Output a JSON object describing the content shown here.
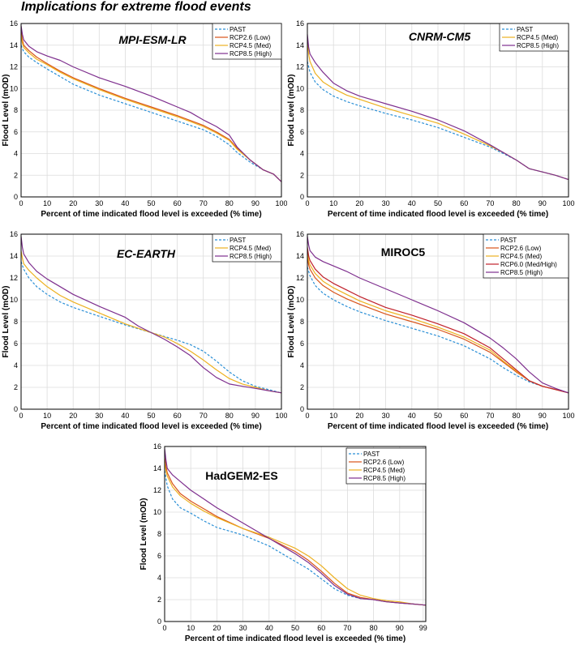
{
  "page_title": "Implications for extreme flood events",
  "colors": {
    "PAST": "#2a8fd6",
    "RCP2.6 (Low)": "#d95319",
    "RCP4.5 (Med)": "#edb120",
    "RCP6.0 (Med/High)": "#c0202a",
    "RCP8.5 (High)": "#7e2f8e"
  },
  "chart_data": [
    {
      "type": "line",
      "title": "MPI-ESM-LR",
      "title_italic": true,
      "xlabel": "Percent of time indicated flood level is exceeded (% time)",
      "ylabel": "Flood Level (mOD)",
      "xlim": [
        0,
        100
      ],
      "ylim": [
        0,
        16
      ],
      "xticks": [
        0,
        10,
        20,
        30,
        40,
        50,
        60,
        70,
        80,
        90,
        100
      ],
      "yticks": [
        0,
        2,
        4,
        6,
        8,
        10,
        12,
        14,
        16
      ],
      "grid": true,
      "legend_position": "top-right",
      "series": [
        {
          "name": "PAST",
          "dashed": true,
          "x": [
            0,
            1,
            3,
            6,
            10,
            15,
            20,
            30,
            40,
            50,
            60,
            70,
            75,
            80,
            83,
            88,
            93,
            97,
            100
          ],
          "y": [
            14.0,
            13.4,
            12.9,
            12.4,
            11.8,
            11.1,
            10.4,
            9.4,
            8.6,
            7.8,
            7.0,
            6.2,
            5.6,
            4.8,
            4.1,
            3.2,
            2.5,
            2.1,
            1.4
          ]
        },
        {
          "name": "RCP2.6 (Low)",
          "x": [
            0,
            0.5,
            1,
            3,
            6,
            10,
            15,
            20,
            30,
            40,
            50,
            60,
            70,
            75,
            80,
            83,
            88,
            93,
            97,
            100
          ],
          "y": [
            15.4,
            14.5,
            14.0,
            13.5,
            12.9,
            12.3,
            11.6,
            11.0,
            10.0,
            9.1,
            8.3,
            7.5,
            6.6,
            6.0,
            5.3,
            4.5,
            3.4,
            2.5,
            2.1,
            1.4
          ]
        },
        {
          "name": "RCP4.5 (Med)",
          "x": [
            0,
            0.5,
            1,
            3,
            6,
            10,
            15,
            20,
            30,
            40,
            50,
            60,
            70,
            75,
            80,
            83,
            88,
            93,
            97,
            100
          ],
          "y": [
            15.0,
            14.2,
            13.8,
            13.3,
            12.7,
            12.2,
            11.5,
            10.9,
            9.9,
            9.0,
            8.2,
            7.4,
            6.5,
            5.9,
            5.2,
            4.4,
            3.4,
            2.5,
            2.1,
            1.4
          ]
        },
        {
          "name": "RCP8.5 (High)",
          "x": [
            0,
            0.5,
            1,
            3,
            6,
            10,
            15,
            20,
            30,
            40,
            50,
            60,
            65,
            70,
            75,
            80,
            83,
            88,
            93,
            97,
            100
          ],
          "y": [
            15.8,
            15.0,
            14.5,
            13.9,
            13.4,
            13.0,
            12.6,
            12.0,
            11.0,
            10.2,
            9.3,
            8.3,
            7.8,
            7.1,
            6.5,
            5.7,
            4.6,
            3.4,
            2.5,
            2.1,
            1.4
          ]
        }
      ]
    },
    {
      "type": "line",
      "title": "CNRM-CM5",
      "title_italic": true,
      "xlabel": "Percent of time indicated flood level is exceeded (% time)",
      "ylabel": "Flood Level (mOD)",
      "xlim": [
        0,
        100
      ],
      "ylim": [
        0,
        16
      ],
      "xticks": [
        0,
        10,
        20,
        30,
        40,
        50,
        60,
        70,
        80,
        90,
        100
      ],
      "yticks": [
        0,
        2,
        4,
        6,
        8,
        10,
        12,
        14,
        16
      ],
      "grid": true,
      "legend_position": "top-right",
      "series": [
        {
          "name": "PAST",
          "dashed": true,
          "x": [
            0,
            1,
            3,
            6,
            10,
            15,
            20,
            30,
            40,
            50,
            60,
            70,
            75,
            80,
            85,
            90,
            95,
            100
          ],
          "y": [
            12.5,
            11.5,
            10.6,
            9.9,
            9.3,
            8.8,
            8.4,
            7.7,
            7.1,
            6.4,
            5.5,
            4.6,
            4.0,
            3.4,
            2.6,
            2.3,
            2.0,
            1.6
          ]
        },
        {
          "name": "RCP4.5 (Med)",
          "x": [
            0,
            0.5,
            1,
            3,
            6,
            10,
            15,
            20,
            30,
            40,
            50,
            60,
            70,
            75,
            80,
            85,
            90,
            95,
            100
          ],
          "y": [
            14.5,
            13.2,
            12.5,
            11.4,
            10.6,
            10.0,
            9.4,
            9.0,
            8.2,
            7.5,
            6.8,
            5.8,
            4.7,
            4.1,
            3.4,
            2.6,
            2.3,
            2.0,
            1.6
          ]
        },
        {
          "name": "RCP8.5 (High)",
          "x": [
            0,
            0.5,
            1,
            3,
            6,
            10,
            15,
            20,
            30,
            40,
            50,
            60,
            70,
            75,
            80,
            85,
            90,
            95,
            100
          ],
          "y": [
            15.0,
            13.8,
            13.2,
            12.4,
            11.5,
            10.5,
            9.8,
            9.3,
            8.6,
            7.9,
            7.1,
            6.1,
            4.8,
            4.1,
            3.4,
            2.6,
            2.3,
            2.0,
            1.6
          ]
        }
      ]
    },
    {
      "type": "line",
      "title": "EC-EARTH",
      "title_italic": true,
      "xlabel": "Percent of time indicated flood level is exceeded (% time)",
      "ylabel": "Flood Level (mOD)",
      "xlim": [
        0,
        100
      ],
      "ylim": [
        0,
        16
      ],
      "xticks": [
        0,
        10,
        20,
        30,
        40,
        50,
        60,
        70,
        80,
        90,
        100
      ],
      "yticks": [
        0,
        2,
        4,
        6,
        8,
        10,
        12,
        14,
        16
      ],
      "grid": true,
      "legend_position": "top-right",
      "series": [
        {
          "name": "PAST",
          "dashed": true,
          "x": [
            0,
            1,
            3,
            6,
            10,
            15,
            20,
            30,
            40,
            50,
            60,
            65,
            70,
            75,
            80,
            85,
            90,
            95,
            100
          ],
          "y": [
            13.5,
            12.8,
            12.0,
            11.2,
            10.5,
            9.8,
            9.3,
            8.5,
            7.7,
            7.0,
            6.3,
            5.9,
            5.3,
            4.4,
            3.4,
            2.6,
            2.1,
            1.8,
            1.5
          ]
        },
        {
          "name": "RCP4.5 (Med)",
          "x": [
            0,
            0.5,
            1,
            3,
            6,
            10,
            15,
            20,
            30,
            40,
            50,
            55,
            60,
            65,
            70,
            75,
            80,
            85,
            90,
            95,
            100
          ],
          "y": [
            14.5,
            13.8,
            13.3,
            12.7,
            12.0,
            11.2,
            10.4,
            9.8,
            8.8,
            7.8,
            7.0,
            6.6,
            6.0,
            5.3,
            4.5,
            3.6,
            2.8,
            2.3,
            2.0,
            1.7,
            1.5
          ]
        },
        {
          "name": "RCP8.5 (High)",
          "x": [
            0,
            0.5,
            1,
            3,
            6,
            10,
            15,
            20,
            30,
            40,
            45,
            50,
            55,
            60,
            65,
            70,
            75,
            80,
            85,
            90,
            95,
            100
          ],
          "y": [
            15.8,
            14.8,
            14.2,
            13.4,
            12.6,
            11.9,
            11.2,
            10.5,
            9.4,
            8.4,
            7.6,
            7.0,
            6.4,
            5.7,
            4.9,
            3.8,
            2.9,
            2.3,
            2.1,
            1.9,
            1.7,
            1.5
          ]
        }
      ]
    },
    {
      "type": "line",
      "title": "MIROC5",
      "title_italic": false,
      "xlabel": "Percent of time indicated flood level is exceeded (% time)",
      "ylabel": "Flood Level (mOD)",
      "xlim": [
        0,
        100
      ],
      "ylim": [
        0,
        16
      ],
      "xticks": [
        0,
        10,
        20,
        30,
        40,
        50,
        60,
        70,
        80,
        90,
        100
      ],
      "yticks": [
        0,
        2,
        4,
        6,
        8,
        10,
        12,
        14,
        16
      ],
      "grid": true,
      "legend_position": "top-right",
      "series": [
        {
          "name": "PAST",
          "dashed": true,
          "x": [
            0,
            1,
            3,
            6,
            10,
            15,
            20,
            30,
            40,
            50,
            60,
            70,
            75,
            80,
            85,
            90,
            95,
            100
          ],
          "y": [
            13.0,
            12.2,
            11.3,
            10.6,
            10.0,
            9.4,
            8.9,
            8.1,
            7.4,
            6.7,
            5.8,
            4.6,
            3.8,
            3.1,
            2.5,
            2.1,
            1.8,
            1.5
          ]
        },
        {
          "name": "RCP2.6 (Low)",
          "x": [
            0,
            0.5,
            1,
            3,
            6,
            10,
            15,
            20,
            30,
            40,
            50,
            60,
            70,
            75,
            80,
            85,
            90,
            95,
            100
          ],
          "y": [
            14.0,
            13.2,
            12.8,
            12.0,
            11.3,
            10.7,
            10.1,
            9.6,
            8.7,
            8.0,
            7.3,
            6.4,
            5.2,
            4.3,
            3.4,
            2.6,
            2.1,
            1.8,
            1.5
          ]
        },
        {
          "name": "RCP4.5 (Med)",
          "x": [
            0,
            0.5,
            1,
            3,
            6,
            10,
            15,
            20,
            30,
            40,
            50,
            60,
            70,
            75,
            80,
            85,
            90,
            95,
            100
          ],
          "y": [
            14.4,
            13.6,
            13.2,
            12.4,
            11.7,
            11.1,
            10.5,
            9.9,
            9.0,
            8.3,
            7.5,
            6.6,
            5.4,
            4.4,
            3.5,
            2.6,
            2.1,
            1.8,
            1.5
          ]
        },
        {
          "name": "RCP6.0 (Med/High)",
          "x": [
            0,
            0.5,
            1,
            3,
            6,
            10,
            15,
            20,
            30,
            40,
            50,
            60,
            70,
            75,
            80,
            85,
            90,
            95,
            100
          ],
          "y": [
            14.8,
            14.0,
            13.6,
            12.8,
            12.1,
            11.5,
            10.9,
            10.3,
            9.3,
            8.6,
            7.8,
            6.9,
            5.6,
            4.6,
            3.6,
            2.6,
            2.1,
            1.8,
            1.5
          ]
        },
        {
          "name": "RCP8.5 (High)",
          "x": [
            0,
            0.5,
            1,
            3,
            6,
            10,
            15,
            20,
            30,
            40,
            50,
            60,
            70,
            75,
            80,
            85,
            90,
            95,
            100
          ],
          "y": [
            15.8,
            15.0,
            14.5,
            13.9,
            13.5,
            13.1,
            12.6,
            12.0,
            11.0,
            10.0,
            9.0,
            7.9,
            6.5,
            5.6,
            4.6,
            3.4,
            2.4,
            1.9,
            1.5
          ]
        }
      ]
    },
    {
      "type": "line",
      "title": "HadGEM2-ES",
      "title_italic": false,
      "xlabel": "Percent of time indicated flood level is exceeded (% time)",
      "ylabel": "Flood Level (mOD)",
      "xlim": [
        0,
        100
      ],
      "ylim": [
        0,
        16
      ],
      "xticks": [
        0,
        10,
        20,
        30,
        40,
        50,
        60,
        70,
        80,
        90,
        99
      ],
      "yticks": [
        0,
        2,
        4,
        6,
        8,
        10,
        12,
        14,
        16
      ],
      "grid": true,
      "legend_position": "top-right",
      "series": [
        {
          "name": "PAST",
          "dashed": true,
          "x": [
            0,
            1,
            3,
            6,
            10,
            15,
            20,
            30,
            40,
            50,
            55,
            60,
            65,
            70,
            75,
            80,
            85,
            90,
            95,
            100
          ],
          "y": [
            13.8,
            12.4,
            11.2,
            10.4,
            9.9,
            9.2,
            8.6,
            7.9,
            6.9,
            5.5,
            4.8,
            3.9,
            3.0,
            2.4,
            2.1,
            2.0,
            1.8,
            1.7,
            1.6,
            1.5
          ]
        },
        {
          "name": "RCP2.6 (Low)",
          "x": [
            0,
            0.5,
            1,
            3,
            6,
            10,
            15,
            20,
            30,
            40,
            50,
            55,
            60,
            65,
            70,
            75,
            80,
            85,
            90,
            95,
            100
          ],
          "y": [
            15.0,
            14.2,
            13.6,
            12.6,
            11.7,
            11.0,
            10.3,
            9.6,
            8.5,
            7.6,
            6.4,
            5.6,
            4.6,
            3.5,
            2.6,
            2.2,
            2.0,
            1.8,
            1.7,
            1.6,
            1.5
          ]
        },
        {
          "name": "RCP4.5 (Med)",
          "x": [
            0,
            0.5,
            1,
            3,
            6,
            10,
            15,
            20,
            30,
            40,
            50,
            55,
            60,
            65,
            70,
            75,
            80,
            85,
            90,
            95,
            100
          ],
          "y": [
            14.6,
            13.8,
            13.3,
            12.3,
            11.5,
            10.8,
            10.1,
            9.5,
            8.5,
            7.7,
            6.7,
            6.0,
            5.1,
            4.0,
            3.0,
            2.4,
            2.1,
            1.9,
            1.8,
            1.6,
            1.5
          ]
        },
        {
          "name": "RCP8.5 (High)",
          "x": [
            0,
            0.5,
            1,
            3,
            6,
            10,
            15,
            20,
            30,
            40,
            50,
            55,
            60,
            65,
            70,
            75,
            80,
            85,
            90,
            95,
            100
          ],
          "y": [
            15.8,
            14.8,
            14.0,
            13.4,
            12.8,
            12.0,
            11.2,
            10.4,
            9.0,
            7.6,
            6.2,
            5.4,
            4.4,
            3.3,
            2.5,
            2.1,
            2.0,
            1.8,
            1.7,
            1.6,
            1.5
          ]
        }
      ]
    }
  ]
}
